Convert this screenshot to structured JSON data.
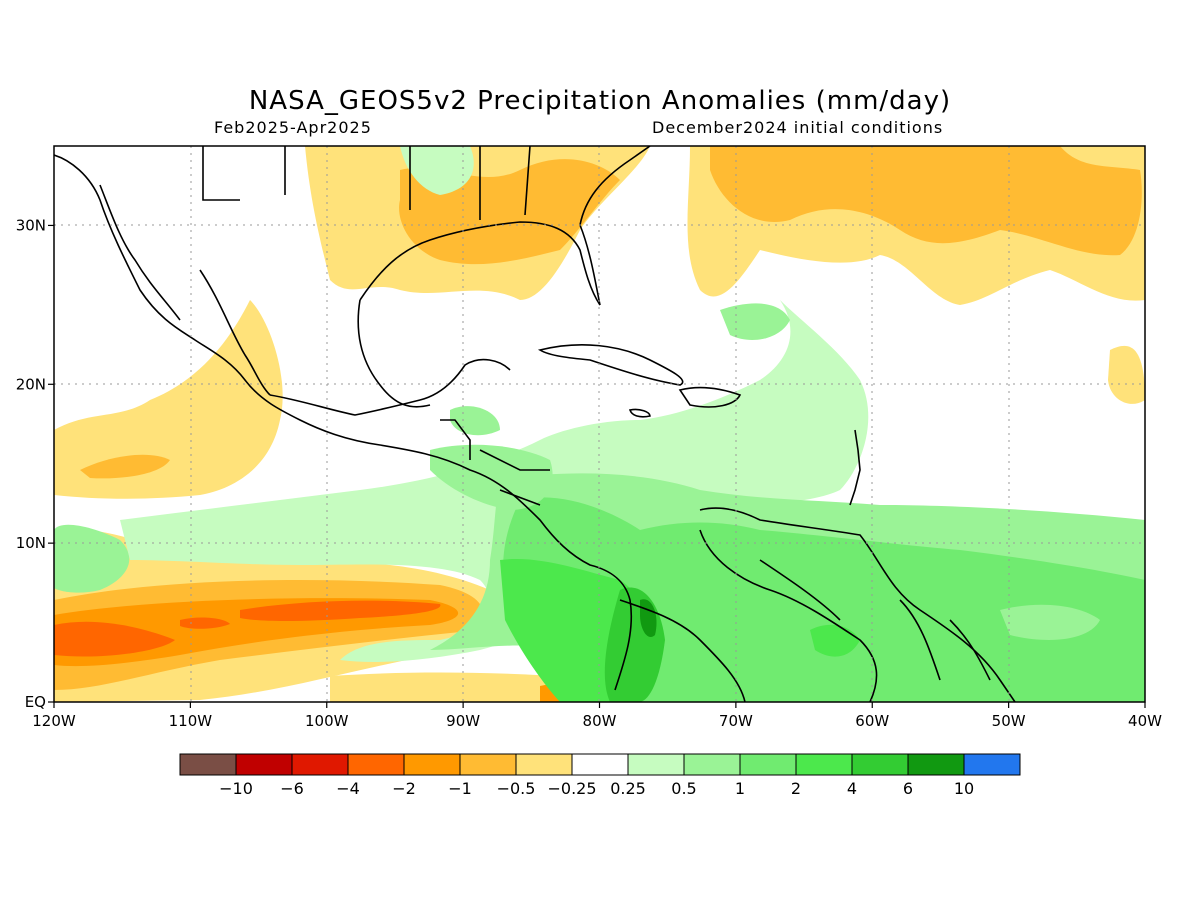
{
  "header": {
    "title": "NASA_GEOS5v2 Precipitation Anomalies (mm/day)",
    "period": "Feb2025-Apr2025",
    "init": "December2024 initial conditions"
  },
  "map": {
    "region": "Caribbean / Central America / Gulf of Mexico",
    "lon_range": [
      -120,
      -40
    ],
    "lat_range": [
      0,
      35
    ],
    "grid": "dotted",
    "lat_ticks": [
      {
        "value": 0,
        "label": "EQ"
      },
      {
        "value": 10,
        "label": "10N"
      },
      {
        "value": 20,
        "label": "20N"
      },
      {
        "value": 30,
        "label": "30N"
      }
    ],
    "lon_ticks": [
      {
        "value": -120,
        "label": "120W"
      },
      {
        "value": -110,
        "label": "110W"
      },
      {
        "value": -100,
        "label": "100W"
      },
      {
        "value": -90,
        "label": "90W"
      },
      {
        "value": -80,
        "label": "80W"
      },
      {
        "value": -70,
        "label": "70W"
      },
      {
        "value": -60,
        "label": "60W"
      },
      {
        "value": -50,
        "label": "50W"
      },
      {
        "value": -40,
        "label": "40W"
      }
    ]
  },
  "colorbar": {
    "colors": [
      "#7a4e45",
      "#c00000",
      "#e01800",
      "#ff6600",
      "#ff9900",
      "#ffbb33",
      "#ffe27a",
      "#ffffff",
      "#c6fcc0",
      "#9af396",
      "#70eb70",
      "#4ce84c",
      "#33cc33",
      "#119911",
      "#2277ee"
    ],
    "labels": [
      "-10",
      "-6",
      "-4",
      "-2",
      "-1",
      "-0.5",
      "-0.25",
      "0.25",
      "0.5",
      "1",
      "2",
      "4",
      "6",
      "10"
    ]
  }
}
